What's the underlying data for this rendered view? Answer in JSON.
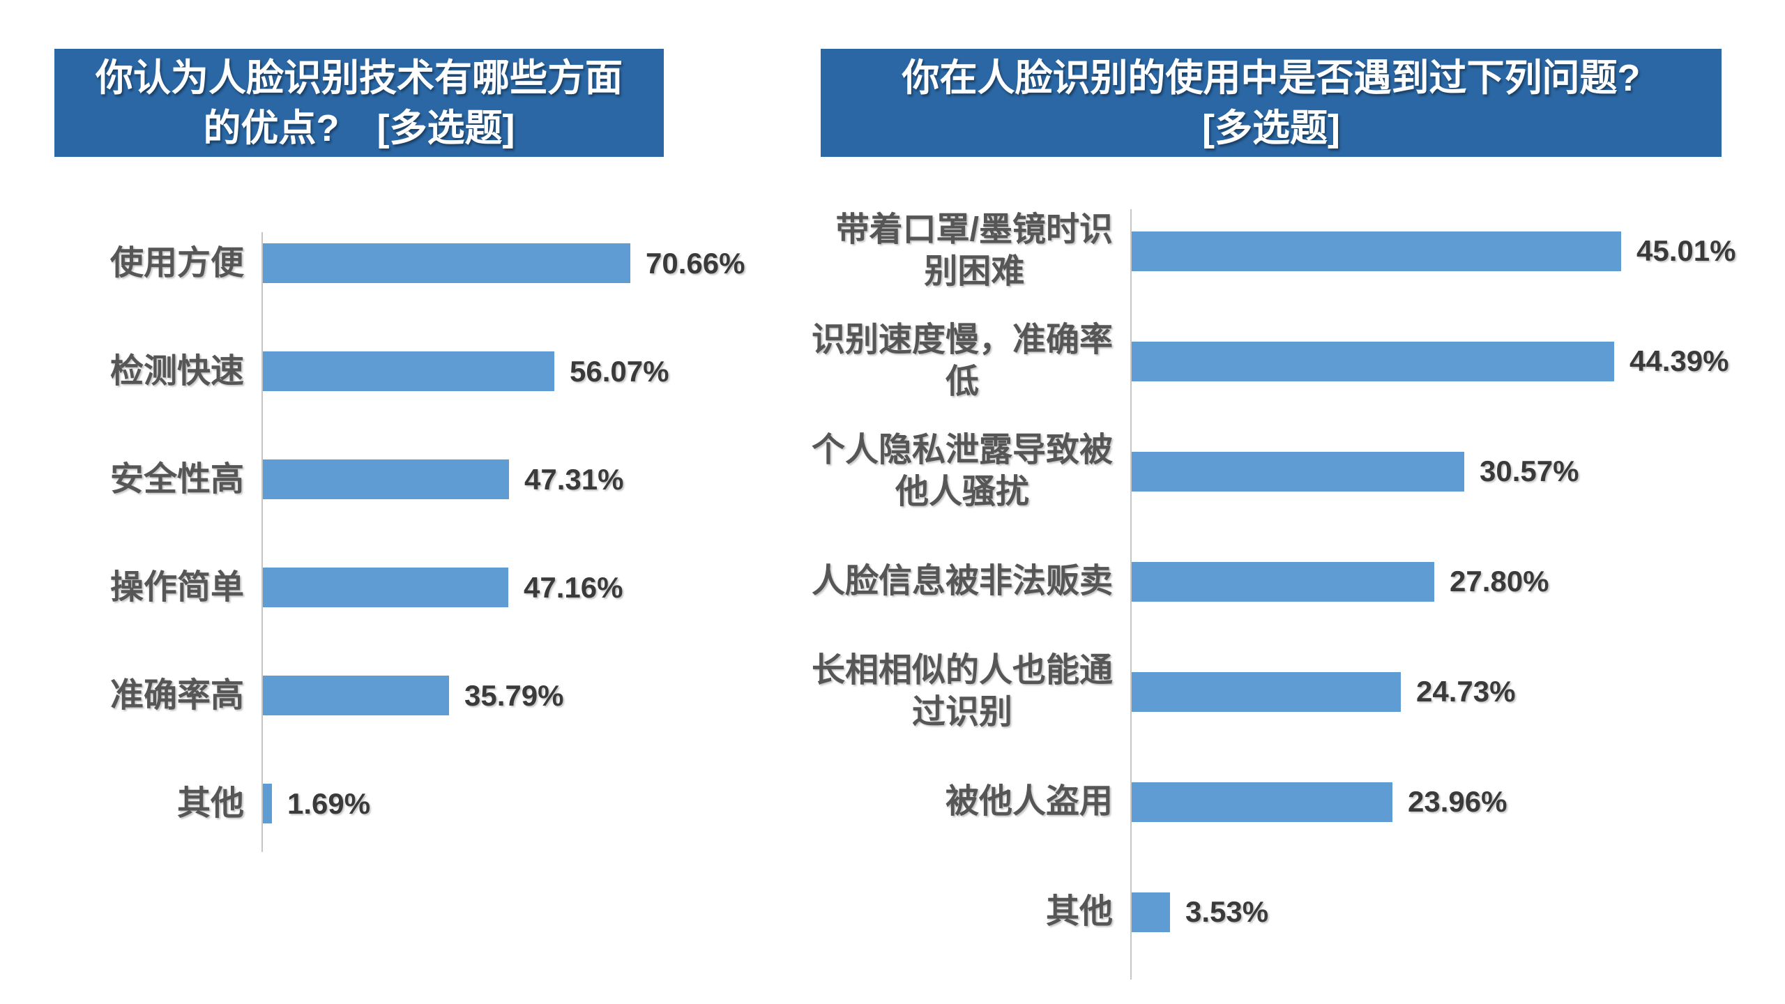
{
  "colors": {
    "title_background": "#2A67A4",
    "title_text": "#FFFFFF",
    "bar_fill": "#5E9CD3",
    "axis_line": "#C6C6C6",
    "category_label": "#565656",
    "value_label": "#3A3A3A"
  },
  "chart_data": [
    {
      "type": "bar",
      "orientation": "horizontal",
      "title": "你认为人脸识别技术有哪些方面的优点? [多选题]",
      "title_display": "你认为人脸识别技术有哪些方面\n的优点?　[多选题]",
      "categories": [
        "使用方便",
        "检测快速",
        "安全性高",
        "操作简单",
        "准确率高",
        "其他"
      ],
      "categories_display": [
        "使用方便",
        "检测快速",
        "安全性高",
        "操作简单",
        "准确率高",
        "其他"
      ],
      "values": [
        70.66,
        56.07,
        47.31,
        47.16,
        35.79,
        1.69
      ],
      "value_labels": [
        "70.66%",
        "56.07%",
        "47.31%",
        "47.16%",
        "35.79%",
        "1.69%"
      ],
      "xlim": [
        0,
        100
      ],
      "xlabel": "",
      "ylabel": "",
      "grid": false,
      "legend": false,
      "data_labels": true
    },
    {
      "type": "bar",
      "orientation": "horizontal",
      "title": "你在人脸识别的使用中是否遇到过下列问题? [多选题]",
      "title_display": "你在人脸识别的使用中是否遇到过下列问题?\n[多选题]",
      "categories": [
        "带着口罩/墨镜时识别困难",
        "识别速度慢，准确率低",
        "个人隐私泄露导致被他人骚扰",
        "人脸信息被非法贩卖",
        "长相相似的人也能通过识别",
        "被他人盗用",
        "其他"
      ],
      "categories_display": [
        "带着口罩/墨镜时识\n别困难",
        "识别速度慢，准确率\n低",
        "个人隐私泄露导致被\n他人骚扰",
        "人脸信息被非法贩卖",
        "长相相似的人也能通\n过识别",
        "被他人盗用",
        "其他"
      ],
      "values": [
        45.01,
        44.39,
        30.57,
        27.8,
        24.73,
        23.96,
        3.53
      ],
      "value_labels": [
        "45.01%",
        "44.39%",
        "30.57%",
        "27.80%",
        "24.73%",
        "23.96%",
        "3.53%"
      ],
      "xlim": [
        0,
        60
      ],
      "xlabel": "",
      "ylabel": "",
      "grid": false,
      "legend": false,
      "data_labels": true
    }
  ]
}
